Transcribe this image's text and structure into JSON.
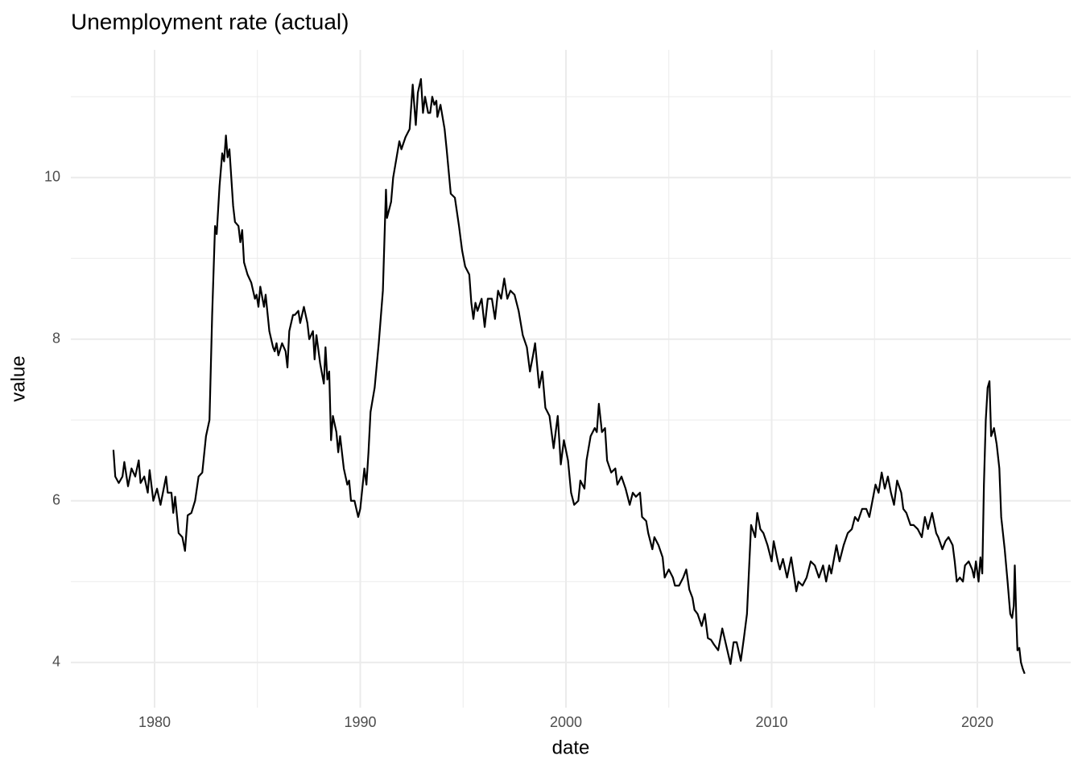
{
  "chart_data": {
    "type": "line",
    "title": "Unemployment rate (actual)",
    "x_label": "date",
    "y_label": "value",
    "color": "#000000",
    "grid": true,
    "xlim": [
      1975.93,
      2024.54
    ],
    "ylim": [
      3.44,
      11.58
    ],
    "xticks": [
      1980,
      1990,
      2000,
      2010,
      2020
    ],
    "yticks": [
      4,
      6,
      8,
      10
    ],
    "x_minor_ticks": [
      1985,
      1995,
      2005,
      2015
    ],
    "y_minor_ticks": [
      5,
      7,
      9,
      11
    ],
    "x": [
      1978.0,
      1978.09,
      1978.26,
      1978.44,
      1978.53,
      1978.71,
      1978.88,
      1979.06,
      1979.23,
      1979.32,
      1979.5,
      1979.67,
      1979.76,
      1979.94,
      1980.12,
      1980.29,
      1980.56,
      1980.64,
      1980.82,
      1980.91,
      1981.0,
      1981.17,
      1981.35,
      1981.48,
      1981.61,
      1981.79,
      1981.97,
      1982.14,
      1982.32,
      1982.5,
      1982.67,
      1982.8,
      1982.94,
      1983.02,
      1983.16,
      1983.29,
      1983.38,
      1983.47,
      1983.55,
      1983.64,
      1983.82,
      1983.91,
      1984.08,
      1984.17,
      1984.26,
      1984.35,
      1984.52,
      1984.7,
      1984.88,
      1984.96,
      1985.05,
      1985.14,
      1985.32,
      1985.4,
      1985.58,
      1985.76,
      1985.84,
      1985.93,
      1986.02,
      1986.2,
      1986.37,
      1986.46,
      1986.55,
      1986.73,
      1986.82,
      1986.99,
      1987.08,
      1987.26,
      1987.43,
      1987.52,
      1987.7,
      1987.78,
      1987.87,
      1988.05,
      1988.23,
      1988.31,
      1988.4,
      1988.49,
      1988.58,
      1988.67,
      1988.84,
      1988.93,
      1989.02,
      1989.2,
      1989.37,
      1989.46,
      1989.55,
      1989.72,
      1989.9,
      1990.0,
      1990.2,
      1990.3,
      1990.4,
      1990.5,
      1990.7,
      1990.9,
      1991.1,
      1991.25,
      1991.3,
      1991.5,
      1991.6,
      1991.8,
      1991.9,
      1992.0,
      1992.2,
      1992.4,
      1992.55,
      1992.7,
      1992.8,
      1992.95,
      1993.05,
      1993.15,
      1993.3,
      1993.4,
      1993.5,
      1993.6,
      1993.7,
      1993.75,
      1993.9,
      1994.1,
      1994.2,
      1994.4,
      1994.6,
      1994.8,
      1994.95,
      1995.1,
      1995.3,
      1995.4,
      1995.5,
      1995.6,
      1995.7,
      1995.9,
      1996.05,
      1996.2,
      1996.4,
      1996.55,
      1996.7,
      1996.85,
      1997.0,
      1997.15,
      1997.3,
      1997.5,
      1997.7,
      1997.9,
      1998.1,
      1998.25,
      1998.4,
      1998.5,
      1998.7,
      1998.85,
      1999.0,
      1999.2,
      1999.4,
      1999.6,
      1999.75,
      1999.9,
      2000.1,
      2000.25,
      2000.4,
      2000.6,
      2000.7,
      2000.9,
      2001.0,
      2001.2,
      2001.4,
      2001.5,
      2001.6,
      2001.75,
      2001.9,
      2002.0,
      2002.2,
      2002.4,
      2002.5,
      2002.7,
      2002.9,
      2003.1,
      2003.25,
      2003.4,
      2003.6,
      2003.7,
      2003.9,
      2004.0,
      2004.2,
      2004.3,
      2004.5,
      2004.7,
      2004.8,
      2004.9,
      2005.0,
      2005.2,
      2005.3,
      2005.5,
      2005.7,
      2005.85,
      2006.0,
      2006.15,
      2006.25,
      2006.4,
      2006.6,
      2006.75,
      2006.9,
      2007.05,
      2007.2,
      2007.4,
      2007.6,
      2007.8,
      2008.0,
      2008.15,
      2008.3,
      2008.5,
      2008.65,
      2008.8,
      2009.0,
      2009.2,
      2009.3,
      2009.45,
      2009.6,
      2009.8,
      2010.0,
      2010.1,
      2010.3,
      2010.4,
      2010.55,
      2010.75,
      2010.95,
      2011.2,
      2011.3,
      2011.5,
      2011.7,
      2011.9,
      2012.1,
      2012.3,
      2012.5,
      2012.65,
      2012.8,
      2012.9,
      2013.15,
      2013.3,
      2013.5,
      2013.7,
      2013.9,
      2014.05,
      2014.2,
      2014.4,
      2014.6,
      2014.75,
      2014.9,
      2015.05,
      2015.2,
      2015.35,
      2015.5,
      2015.65,
      2015.8,
      2015.95,
      2016.1,
      2016.3,
      2016.4,
      2016.55,
      2016.75,
      2016.9,
      2017.1,
      2017.3,
      2017.45,
      2017.6,
      2017.8,
      2018.0,
      2018.1,
      2018.3,
      2018.45,
      2018.6,
      2018.8,
      2018.9,
      2019.0,
      2019.15,
      2019.3,
      2019.4,
      2019.58,
      2019.75,
      2019.84,
      2019.93,
      2020.06,
      2020.15,
      2020.24,
      2020.32,
      2020.41,
      2020.5,
      2020.59,
      2020.67,
      2020.81,
      2020.94,
      2021.07,
      2021.16,
      2021.33,
      2021.47,
      2021.6,
      2021.69,
      2021.77,
      2021.82,
      2021.9,
      2021.95,
      2022.04,
      2022.12,
      2022.21,
      2022.3
    ],
    "values": [
      6.63,
      6.3,
      6.22,
      6.3,
      6.48,
      6.18,
      6.4,
      6.3,
      6.5,
      6.22,
      6.3,
      6.1,
      6.38,
      6.0,
      6.15,
      5.95,
      6.3,
      6.1,
      6.1,
      5.85,
      6.05,
      5.6,
      5.55,
      5.38,
      5.82,
      5.85,
      6.0,
      6.3,
      6.35,
      6.8,
      7.0,
      8.3,
      9.4,
      9.3,
      9.9,
      10.3,
      10.2,
      10.52,
      10.25,
      10.35,
      9.65,
      9.45,
      9.4,
      9.2,
      9.35,
      8.95,
      8.8,
      8.7,
      8.5,
      8.55,
      8.4,
      8.65,
      8.4,
      8.55,
      8.1,
      7.9,
      7.85,
      7.95,
      7.8,
      7.95,
      7.85,
      7.65,
      8.1,
      8.3,
      8.3,
      8.35,
      8.2,
      8.4,
      8.2,
      8.0,
      8.1,
      7.75,
      8.05,
      7.7,
      7.45,
      7.9,
      7.5,
      7.6,
      6.75,
      7.05,
      6.85,
      6.6,
      6.8,
      6.4,
      6.2,
      6.25,
      6.0,
      6.0,
      5.8,
      5.9,
      6.4,
      6.2,
      6.6,
      7.1,
      7.4,
      7.95,
      8.6,
      9.85,
      9.5,
      9.7,
      10.0,
      10.3,
      10.45,
      10.35,
      10.5,
      10.6,
      11.15,
      10.65,
      11.05,
      11.22,
      10.8,
      11.0,
      10.8,
      10.8,
      11.0,
      10.9,
      10.95,
      10.75,
      10.9,
      10.6,
      10.35,
      9.8,
      9.75,
      9.4,
      9.1,
      8.9,
      8.8,
      8.45,
      8.25,
      8.45,
      8.35,
      8.5,
      8.15,
      8.5,
      8.5,
      8.25,
      8.6,
      8.5,
      8.75,
      8.5,
      8.6,
      8.55,
      8.35,
      8.05,
      7.9,
      7.6,
      7.8,
      7.95,
      7.4,
      7.6,
      7.15,
      7.05,
      6.65,
      7.05,
      6.45,
      6.75,
      6.5,
      6.1,
      5.95,
      6.0,
      6.25,
      6.15,
      6.5,
      6.8,
      6.9,
      6.85,
      7.2,
      6.85,
      6.9,
      6.5,
      6.35,
      6.4,
      6.2,
      6.3,
      6.15,
      5.95,
      6.1,
      6.05,
      6.1,
      5.8,
      5.75,
      5.6,
      5.4,
      5.55,
      5.45,
      5.3,
      5.05,
      5.1,
      5.15,
      5.05,
      4.95,
      4.95,
      5.05,
      5.15,
      4.9,
      4.8,
      4.65,
      4.6,
      4.45,
      4.6,
      4.3,
      4.28,
      4.22,
      4.15,
      4.42,
      4.2,
      3.98,
      4.25,
      4.25,
      4.02,
      4.3,
      4.6,
      5.7,
      5.55,
      5.85,
      5.65,
      5.6,
      5.45,
      5.25,
      5.5,
      5.25,
      5.15,
      5.28,
      5.05,
      5.3,
      4.88,
      5.0,
      4.95,
      5.05,
      5.25,
      5.2,
      5.05,
      5.2,
      5.0,
      5.2,
      5.1,
      5.45,
      5.25,
      5.45,
      5.6,
      5.65,
      5.8,
      5.75,
      5.9,
      5.9,
      5.8,
      6.0,
      6.2,
      6.1,
      6.35,
      6.15,
      6.3,
      6.1,
      5.95,
      6.25,
      6.1,
      5.9,
      5.85,
      5.7,
      5.7,
      5.65,
      5.55,
      5.8,
      5.65,
      5.85,
      5.6,
      5.55,
      5.4,
      5.5,
      5.55,
      5.45,
      5.25,
      5.0,
      5.05,
      5.0,
      5.2,
      5.25,
      5.15,
      5.05,
      5.25,
      5.0,
      5.3,
      5.1,
      6.2,
      7.0,
      7.4,
      7.48,
      6.8,
      6.9,
      6.7,
      6.4,
      5.8,
      5.4,
      5.0,
      4.6,
      4.55,
      4.7,
      5.2,
      4.5,
      4.15,
      4.18,
      4.0,
      3.92,
      3.86
    ]
  }
}
